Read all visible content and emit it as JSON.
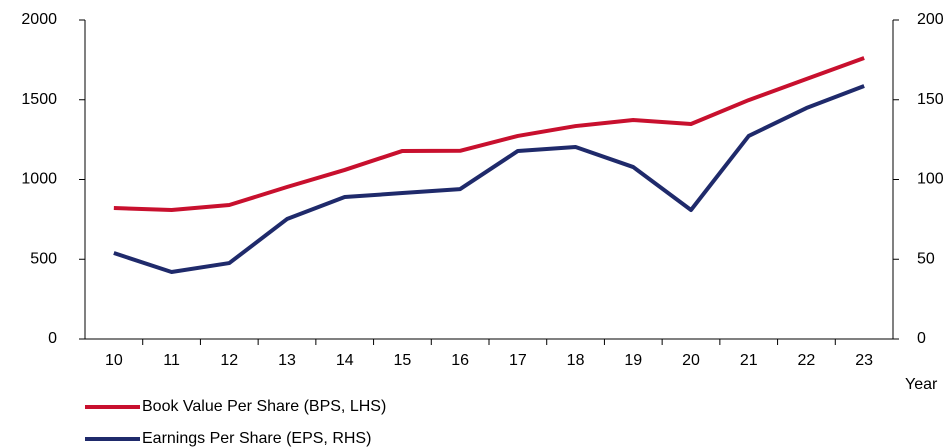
{
  "chart_data": {
    "type": "line",
    "categories": [
      "10",
      "11",
      "12",
      "13",
      "14",
      "15",
      "16",
      "17",
      "18",
      "19",
      "20",
      "21",
      "22",
      "23"
    ],
    "x_label": "Year",
    "series": [
      {
        "name": "Book Value Per Share (BPS, LHS)",
        "color": "#c8102e",
        "axis": "y",
        "values": [
          821,
          809,
          840,
          953,
          1060,
          1179,
          1180,
          1273,
          1335,
          1373,
          1348,
          1498,
          1630,
          1762
        ]
      },
      {
        "name": "Earnings Per Share (EPS, RHS)",
        "color": "#1f2a6b",
        "axis": "y2",
        "values": [
          53.9,
          42,
          47.6,
          75.2,
          89,
          91.5,
          94,
          117.9,
          120.4,
          107.8,
          80.9,
          127.3,
          144.8,
          158.6
        ]
      }
    ],
    "ylim": [
      0,
      2000
    ],
    "yticks": [
      0,
      500,
      1000,
      1500,
      2000
    ],
    "y2lim": [
      0,
      200
    ],
    "y2ticks": [
      0,
      50,
      100,
      150,
      200
    ],
    "legend": "bottom"
  }
}
